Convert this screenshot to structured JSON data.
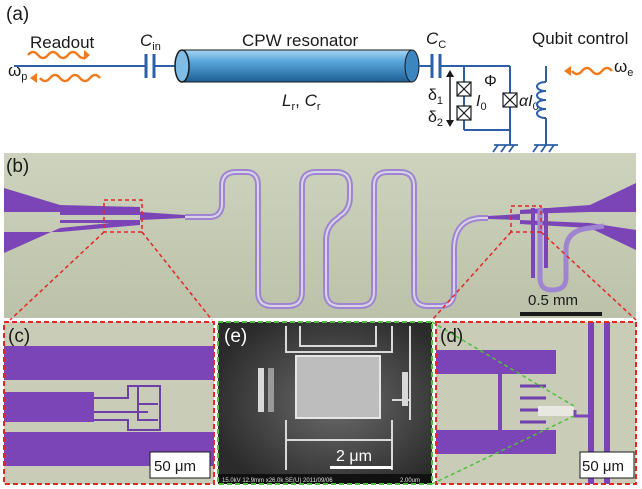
{
  "panel_a": {
    "label": "(a)",
    "readout": "Readout",
    "omega_p": "ω",
    "omega_p_sub": "p",
    "c_in": "C",
    "c_in_sub": "in",
    "resonator_title": "CPW resonator",
    "resonator_params": {
      "L": "L",
      "L_sub": "r",
      "sep": ", ",
      "C": "C",
      "C_sub": "r"
    },
    "c_c": "C",
    "c_c_sub": "C",
    "delta1": "δ",
    "delta1_sub": "1",
    "delta2": "δ",
    "delta2_sub": "2",
    "i0": "I",
    "i0_sub": "0",
    "phi": "Φ",
    "alpha_i0": "αI",
    "alpha_i0_sub": "0",
    "qubit_control": "Qubit control",
    "omega_e": "ω",
    "omega_e_sub": "e"
  },
  "panel_b": {
    "label": "(b)",
    "scalebar": "0.5 mm"
  },
  "panel_c": {
    "label": "(c)",
    "scalebar": "50 μm"
  },
  "panel_e": {
    "label": "(e)",
    "scalebar": "2 μm",
    "sem_footer": "15.0kV 12.9mm x26.0k SE(U) 2011/09/06",
    "sem_footer_scale": "2.00um"
  },
  "panel_d": {
    "label": "(d)",
    "scalebar": "50 μm"
  },
  "colors": {
    "wave": "#f07a1e",
    "line": "#2d5fa6",
    "resonator": "#4a9ad0",
    "chip_bg": "#c8cdb7",
    "metal": "#7b45b8",
    "inset_border": "#e32626",
    "sem_border": "#4fbf3c"
  }
}
